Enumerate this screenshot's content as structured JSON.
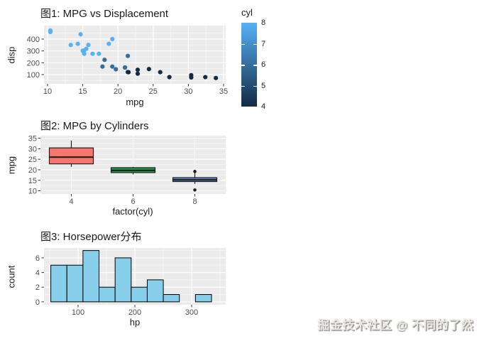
{
  "page": {
    "background": "#FFFFFF",
    "watermark": "掘金技术社区 @ 不同的了然"
  },
  "theme": {
    "panel_bg": "#EBEBEB",
    "grid_major": "#FFFFFF",
    "grid_minor": "#F5F5F5",
    "tick_mark_color": "#333333",
    "tick_label_color": "#4D4D4D",
    "axis_title_color": "#1A1A1A",
    "point_outline": "none",
    "box_stroke": "#1F1F1F",
    "outlier_color": "#1F1F1F"
  },
  "chart_data": [
    {
      "id": "scatter-mpg-disp",
      "type": "scatter",
      "title": "图1: MPG vs Displacement",
      "xlabel": "mpg",
      "ylabel": "disp",
      "x_ticks": [
        10,
        15,
        20,
        25,
        30,
        35
      ],
      "y_ticks": [
        100,
        200,
        300,
        400
      ],
      "xlim": [
        9.5,
        35.3
      ],
      "ylim": [
        22,
        514
      ],
      "grid": true,
      "legend": {
        "title": "cyl",
        "position": "right",
        "ticks": [
          4,
          5,
          6,
          7,
          8
        ],
        "lim": [
          4,
          8
        ],
        "low_color": "#132B43",
        "high_color": "#56B1F7"
      },
      "point_columns": [
        "mpg",
        "disp",
        "cyl"
      ],
      "points": [
        [
          21.0,
          160.0,
          6
        ],
        [
          21.0,
          160.0,
          6
        ],
        [
          22.8,
          108.0,
          4
        ],
        [
          21.4,
          258.0,
          6
        ],
        [
          18.7,
          360.0,
          8
        ],
        [
          18.1,
          225.0,
          6
        ],
        [
          14.3,
          360.0,
          8
        ],
        [
          24.4,
          146.7,
          4
        ],
        [
          22.8,
          140.8,
          4
        ],
        [
          19.2,
          167.6,
          6
        ],
        [
          17.8,
          167.6,
          6
        ],
        [
          16.4,
          275.8,
          8
        ],
        [
          17.3,
          275.8,
          8
        ],
        [
          15.2,
          275.8,
          8
        ],
        [
          10.4,
          472.0,
          8
        ],
        [
          10.4,
          460.0,
          8
        ],
        [
          14.7,
          440.0,
          8
        ],
        [
          32.4,
          78.7,
          4
        ],
        [
          30.4,
          75.7,
          4
        ],
        [
          33.9,
          71.1,
          4
        ],
        [
          21.5,
          120.1,
          4
        ],
        [
          15.5,
          318.0,
          8
        ],
        [
          15.2,
          304.0,
          8
        ],
        [
          13.3,
          350.0,
          8
        ],
        [
          19.2,
          400.0,
          8
        ],
        [
          27.3,
          79.0,
          4
        ],
        [
          26.0,
          120.3,
          4
        ],
        [
          30.4,
          95.1,
          4
        ],
        [
          15.8,
          351.0,
          8
        ],
        [
          19.7,
          145.0,
          6
        ],
        [
          15.0,
          301.0,
          8
        ],
        [
          21.4,
          121.0,
          4
        ]
      ]
    },
    {
      "id": "boxplot-mpg-cyl",
      "type": "boxplot",
      "title": "图2: MPG by Cylinders",
      "xlabel": "factor(cyl)",
      "ylabel": "mpg",
      "categories": [
        "4",
        "6",
        "8"
      ],
      "y_ticks": [
        10,
        15,
        20,
        25,
        30,
        35
      ],
      "ylim": [
        8.5,
        36.2
      ],
      "grid": true,
      "boxes": [
        {
          "category": "4",
          "fill": "#F8766D",
          "whisker_low": 21.4,
          "q1": 22.8,
          "median": 26.0,
          "q3": 30.4,
          "whisker_high": 33.9,
          "outliers": []
        },
        {
          "category": "6",
          "fill": "#17A34A",
          "whisker_low": 17.8,
          "q1": 18.65,
          "median": 19.7,
          "q3": 21.0,
          "whisker_high": 21.4,
          "outliers": []
        },
        {
          "category": "8",
          "fill": "#5C84CB",
          "whisker_low": 13.3,
          "q1": 14.4,
          "median": 15.2,
          "q3": 16.25,
          "whisker_high": 18.7,
          "outliers": [
            10.4,
            19.2
          ]
        }
      ]
    },
    {
      "id": "histogram-hp",
      "type": "histogram",
      "title": "图3: Horsepower分布",
      "xlabel": "hp",
      "ylabel": "count",
      "x_ticks": [
        100,
        200,
        300
      ],
      "y_ticks": [
        0,
        2,
        4,
        6
      ],
      "xlim": [
        40,
        360
      ],
      "ylim": [
        -0.4,
        7.35
      ],
      "grid": true,
      "bar_fill": "#87CEEB",
      "bar_stroke": "#000000",
      "bins": {
        "start": 52,
        "width": 28.3,
        "counts": [
          5,
          5,
          7,
          2,
          6,
          2,
          3,
          1,
          0,
          1
        ]
      }
    }
  ]
}
